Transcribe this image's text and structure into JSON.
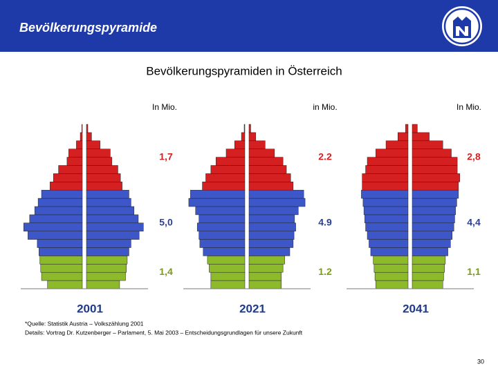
{
  "header": {
    "title": "Bevölkerungspyramide"
  },
  "subtitle": "Bevölkerungspyramiden in Österreich",
  "chart_data": [
    {
      "type": "pyramid",
      "title": "2001",
      "unit": "In Mio.",
      "xlim": [
        -350,
        350
      ],
      "groups": [
        {
          "color": "#8dba2a",
          "text_color": "#7a9a18",
          "total": {
            "value": 1.4,
            "label": "1,4"
          },
          "left": [
            205,
            240,
            245,
            250
          ],
          "right": [
            195,
            230,
            235,
            240
          ]
        },
        {
          "color": "#3d57c9",
          "text_color": "#2a3f9a",
          "total": {
            "value": 5.0,
            "label": "5,0"
          },
          "left": [
            255,
            265,
            320,
            345,
            310,
            280,
            260,
            240
          ],
          "right": [
            250,
            262,
            310,
            335,
            305,
            280,
            262,
            250
          ]
        },
        {
          "color": "#d42020",
          "text_color": "#d42020",
          "total": {
            "value": 1.7,
            "label": "1,7"
          },
          "left": [
            190,
            170,
            140,
            90,
            80,
            35,
            12,
            3
          ],
          "right": [
            210,
            200,
            185,
            150,
            140,
            80,
            30,
            8
          ]
        }
      ]
    },
    {
      "type": "pyramid",
      "title": "2021",
      "unit": "in Mio.",
      "xlim": [
        -350,
        350
      ],
      "groups": [
        {
          "color": "#8dba2a",
          "text_color": "#7a9a18",
          "total": 1.2,
          "left": [
            200,
            200,
            210,
            220
          ],
          "right": [
            190,
            190,
            200,
            210
          ]
        },
        {
          "color": "#3d57c9",
          "text_color": "#2a3f9a",
          "total": 4.9,
          "left": [
            245,
            265,
            270,
            280,
            270,
            290,
            330,
            320
          ],
          "right": [
            240,
            260,
            265,
            275,
            268,
            290,
            330,
            322
          ]
        },
        {
          "color": "#d42020",
          "text_color": "#d42020",
          "total": 2.2,
          "left": [
            250,
            230,
            200,
            170,
            110,
            60,
            20,
            4
          ],
          "right": [
            260,
            245,
            220,
            200,
            150,
            95,
            40,
            10
          ]
        }
      ]
    },
    {
      "type": "pyramid",
      "title": "2041",
      "unit": "In Mio.",
      "xlim": [
        -350,
        350
      ],
      "groups": [
        {
          "color": "#8dba2a",
          "text_color": "#7a9a18",
          "total": {
            "value": 1.1,
            "label": "1,1"
          },
          "left": [
            190,
            195,
            200,
            205
          ],
          "right": [
            180,
            185,
            190,
            195
          ]
        },
        {
          "color": "#3d57c9",
          "text_color": "#2a3f9a",
          "total": {
            "value": 4.4,
            "label": "4,4"
          },
          "left": [
            220,
            230,
            240,
            250,
            255,
            260,
            265,
            275
          ],
          "right": [
            210,
            225,
            235,
            245,
            250,
            255,
            262,
            272
          ]
        },
        {
          "color": "#d42020",
          "text_color": "#d42020",
          "total": {
            "value": 2.8,
            "label": "2,8"
          },
          "left": [
            270,
            270,
            250,
            240,
            190,
            130,
            60,
            15
          ],
          "right": [
            272,
            280,
            265,
            265,
            230,
            180,
            100,
            30
          ]
        }
      ]
    }
  ],
  "footnotes": [
    "*Quelle: Statistik Austria – Volkszählung 2001",
    "Details: Vortrag Dr. Kutzenberger – Parlament, 5. Mai 2003 – Entscheidungsgrundlagen für unsere Zukunft"
  ],
  "page_number": "30"
}
